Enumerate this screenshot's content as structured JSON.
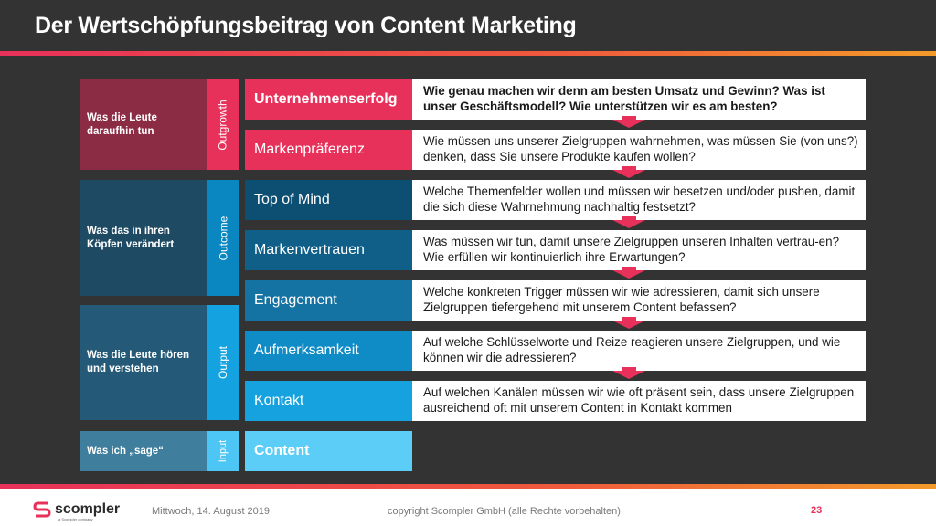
{
  "title": "Der Wertschöpfungsbeitrag von Content Marketing",
  "colors": {
    "accent": "#e8315a",
    "outgrowth_dark": "#8c2b44",
    "outgrowth_light": "#e8315a",
    "outcome_dark": "#1e4a63",
    "output_dark": "#2b5f7c",
    "input_dark": "#3f7e9c"
  },
  "groups": [
    {
      "label": "Was die Leute daraufhin tun",
      "tag": "Outgrowth"
    },
    {
      "label": "Was das in ihren Köpfen verändert",
      "tag": "Outcome"
    },
    {
      "label": "Was die Leute hören und verstehen",
      "tag": "Output"
    },
    {
      "label": "Was ich „sage“",
      "tag": "Input"
    }
  ],
  "levels": [
    {
      "label": "Unternehmenserfolg",
      "question": "Wie genau machen wir denn am besten Umsatz und Gewinn? Was ist unser Geschäftsmodell? Wie unterstützen wir es am besten?"
    },
    {
      "label": "Markenpräferenz",
      "question": "Wie müssen uns unserer Zielgruppen wahrnehmen, was müssen Sie (von uns?) denken, dass Sie unsere Produkte kaufen wollen?"
    },
    {
      "label": "Top of Mind",
      "question": "Welche Themenfelder wollen und müssen wir besetzen und/oder pushen, damit die sich diese Wahrnehmung nachhaltig festsetzt?"
    },
    {
      "label": "Markenvertrauen",
      "question": "Was müssen wir tun, damit unsere Zielgruppen unseren Inhalten vertrau-en? Wie erfüllen wir kontinuierlich ihre Erwartungen?"
    },
    {
      "label": "Engagement",
      "question": "Welche konkreten Trigger müssen wir wie adressieren, damit sich unsere Zielgruppen tiefergehend mit unserem Content befassen?"
    },
    {
      "label": "Aufmerksamkeit",
      "question": "Auf welche Schlüsselworte und Reize reagieren unsere Zielgruppen, und wie können wir die adressieren?"
    },
    {
      "label": "Kontakt",
      "question": "Auf welchen Kanälen müssen wir wie oft präsent sein, dass unsere Zielgruppen ausreichend oft mit unserem Content in Kontakt kommen"
    },
    {
      "label": "Content"
    }
  ],
  "footer": {
    "logo": "scompler",
    "logo_sub": "a Scompler company",
    "date": "Mittwoch, 14. August 2019",
    "copyright": "copyright Scompler GmbH (alle Rechte vorbehalten)",
    "page": "23"
  }
}
